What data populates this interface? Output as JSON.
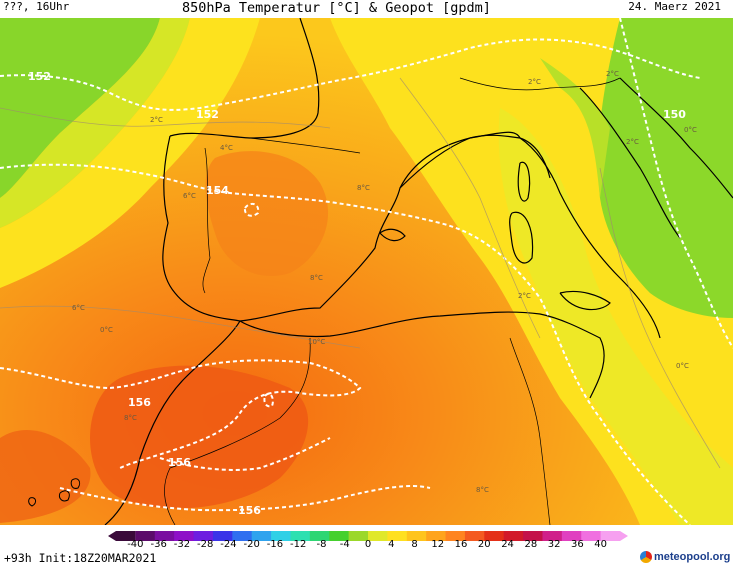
{
  "header": {
    "location": "???, 16Uhr",
    "title": "850hPa Temperatur [°C] & Geopot [gpdm]",
    "date": "24. Maerz 2021"
  },
  "map": {
    "geopotential_labels": [
      "152",
      "152",
      "150",
      "154",
      "156",
      "156",
      "156"
    ],
    "temperature_labels": [
      "2°C",
      "2°C",
      "2°C",
      "4°C",
      "6°C",
      "0°C",
      "8°C",
      "8°C",
      "10°C",
      "2°C",
      "2°C",
      "0°C",
      "6°C",
      "0°C",
      "8°C",
      "8°C"
    ]
  },
  "legend": {
    "ticks": [
      "-40",
      "-36",
      "-32",
      "-28",
      "-24",
      "-20",
      "-16",
      "-12",
      "-8",
      "-4",
      "0",
      "4",
      "8",
      "12",
      "16",
      "20",
      "24",
      "28",
      "32",
      "36",
      "40"
    ],
    "colors": [
      "#3a0a3a",
      "#5b0b6a",
      "#7a0ea0",
      "#8e10c8",
      "#6d1ee0",
      "#3a34e8",
      "#2f6ff0",
      "#2fa3ee",
      "#2fd0e6",
      "#2ee0b0",
      "#2ed673",
      "#45d02e",
      "#9bd82a",
      "#e0e82a",
      "#ffe020",
      "#ffc41c",
      "#ffa41c",
      "#ff8420",
      "#f45a20",
      "#e43018",
      "#d21a2a",
      "#c4124a",
      "#d0208a",
      "#e040c0",
      "#f070e0",
      "#f6a0f0"
    ]
  },
  "footer": {
    "init": "+93h Init:18Z20MAR2021",
    "brand": "meteopool.org"
  }
}
